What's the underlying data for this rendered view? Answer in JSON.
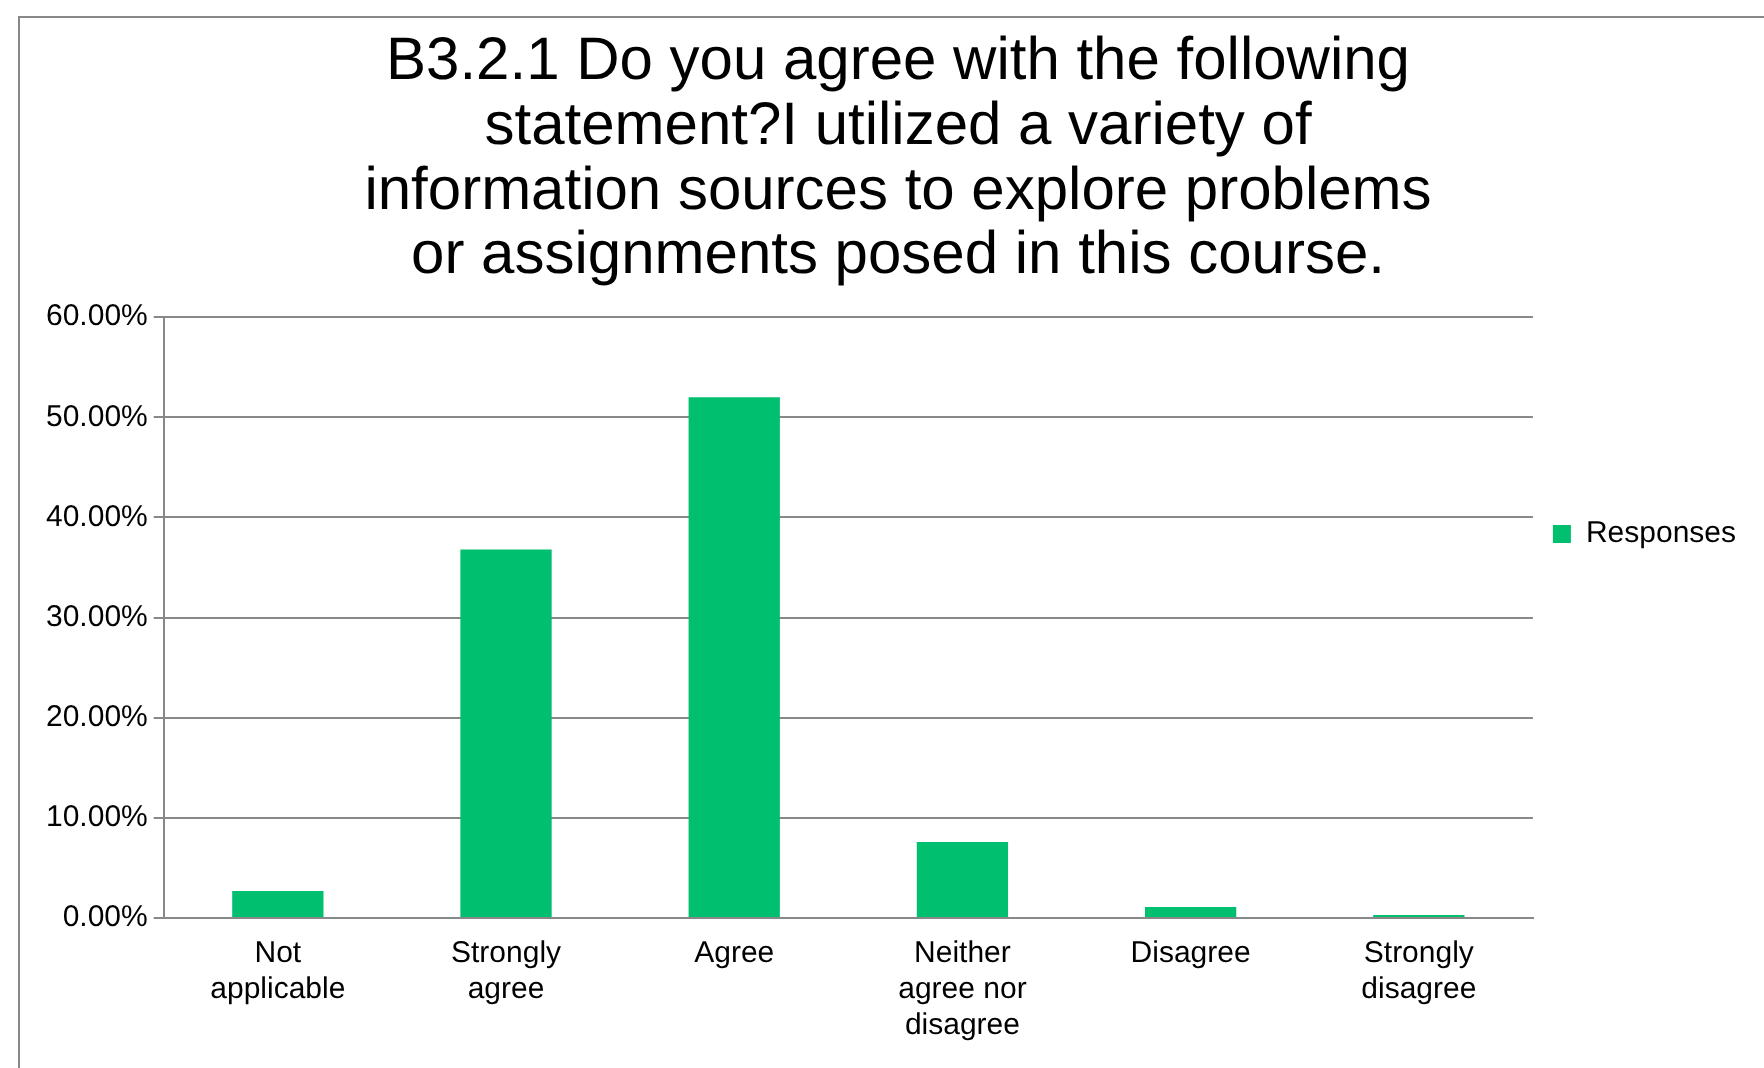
{
  "chart_data": {
    "type": "bar",
    "title": "B3.2.1 Do you agree with the following statement?I utilized a variety of information sources to explore problems or assignments posed in this course.",
    "categories": [
      "Not applicable",
      "Strongly agree",
      "Agree",
      "Neither agree nor disagree",
      "Disagree",
      "Strongly disagree"
    ],
    "series": [
      {
        "name": "Responses",
        "color": "#00bf6f",
        "values": [
          2.7,
          36.8,
          52.0,
          7.6,
          1.1,
          0.3
        ]
      }
    ],
    "ylim": [
      0,
      60
    ],
    "yticks": [
      {
        "value": 0,
        "label": "0.00%"
      },
      {
        "value": 10,
        "label": "10.00%"
      },
      {
        "value": 20,
        "label": "20.00%"
      },
      {
        "value": 30,
        "label": "30.00%"
      },
      {
        "value": 40,
        "label": "40.00%"
      },
      {
        "value": 50,
        "label": "50.00%"
      },
      {
        "value": 60,
        "label": "60.00%"
      }
    ],
    "grid": "y",
    "legend": "right"
  }
}
